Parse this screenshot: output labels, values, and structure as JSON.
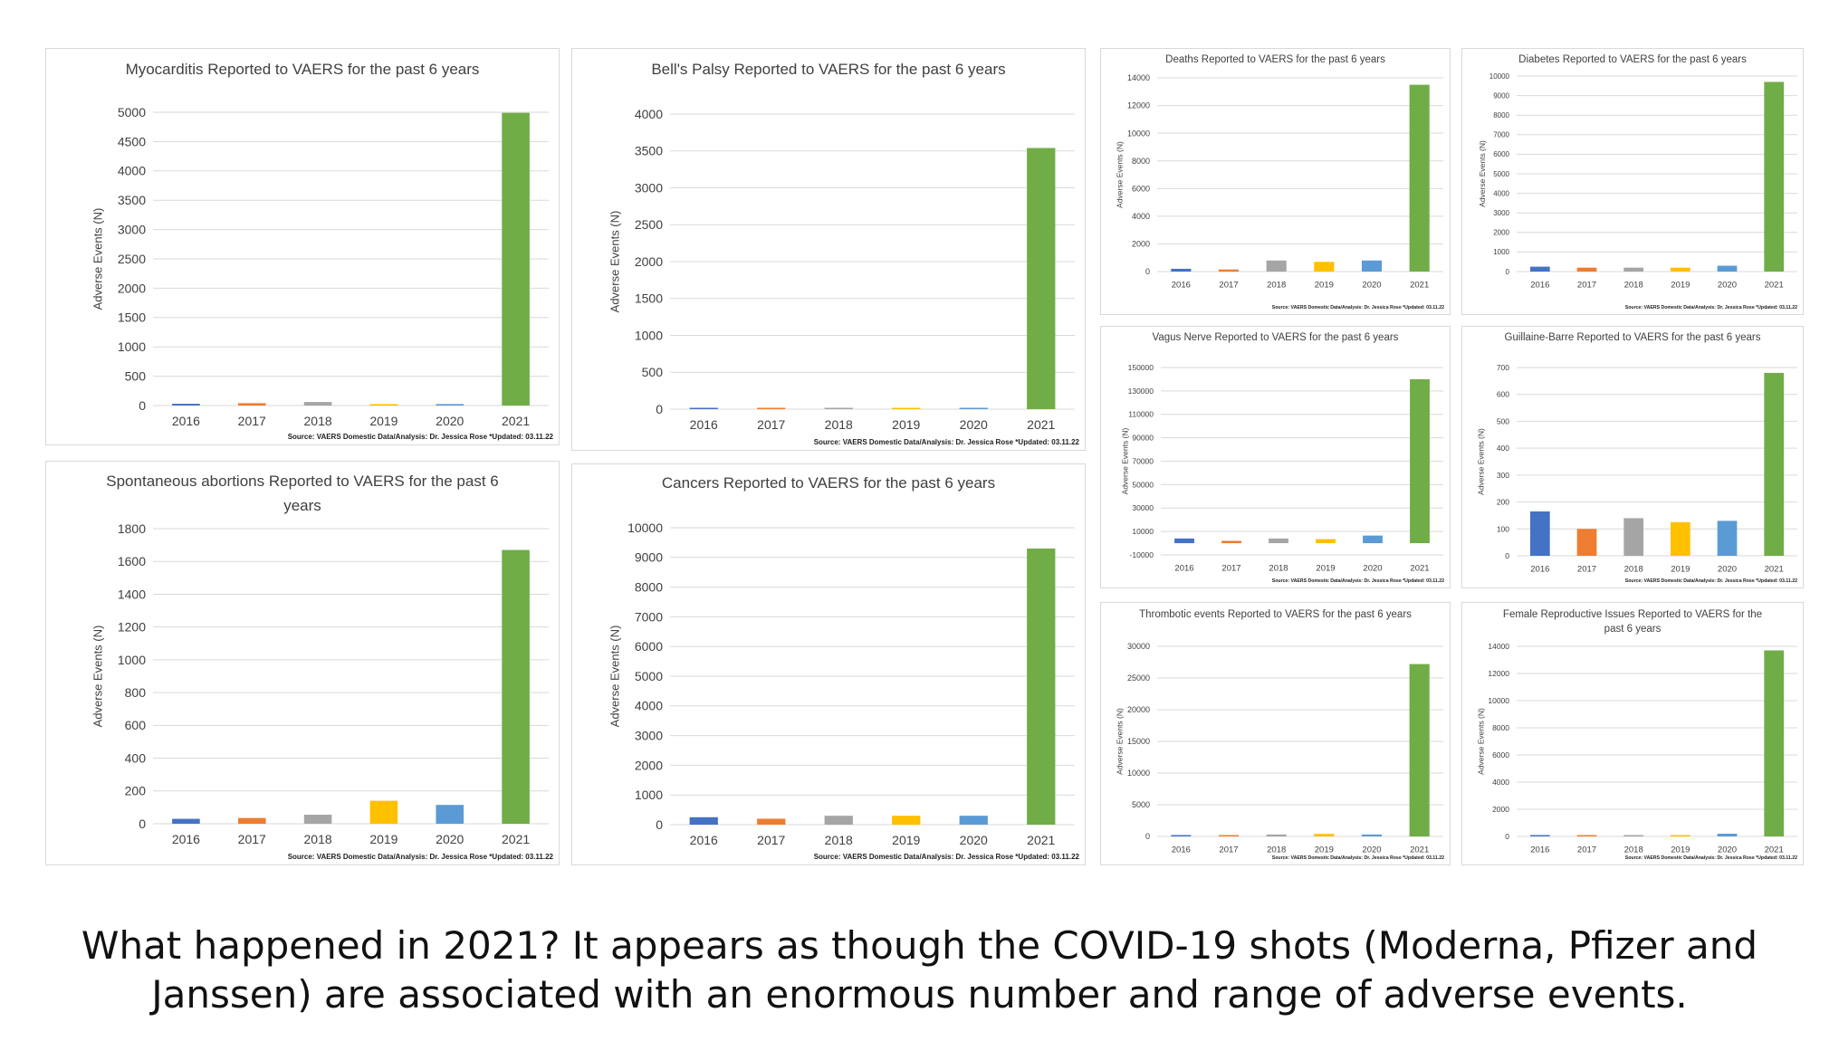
{
  "charts": [
    {
      "id": "c1",
      "title": "Myocarditis Reported to VAERS for the past 6 years",
      "ylabel": "Adverse Events (N)",
      "source": "Source: VAERS Domestic Data/Analysis: Dr. Jessica Rose *Updated: 03.11.22"
    },
    {
      "id": "c2",
      "title": "Bell's Palsy Reported to VAERS for the past 6 years",
      "ylabel": "Adverse Events (N)",
      "source": "Source: VAERS Domestic Data/Analysis: Dr. Jessica Rose *Updated: 03.11.22"
    },
    {
      "id": "c3",
      "title": "Deaths Reported to VAERS for the past 6 years",
      "ylabel": "Adverse Events (N)",
      "source": "Source: VAERS Domestic Data/Analysis: Dr. Jessica Rose *Updated: 03.11.22"
    },
    {
      "id": "c4",
      "title": "Diabetes Reported to VAERS for the past 6 years",
      "ylabel": "Adverse Events (N)",
      "source": "Source: VAERS Domestic Data/Analysis: Dr. Jessica Rose *Updated: 03.11.22"
    },
    {
      "id": "c5",
      "title": "Vagus Nerve Reported to VAERS for the past 6 years",
      "ylabel": "Adverse Events (N)",
      "source": "Source: VAERS Domestic Data/Analysis: Dr. Jessica Rose *Updated: 03.11.22"
    },
    {
      "id": "c6",
      "title": "Guillaine-Barre Reported to VAERS for the past 6 years",
      "ylabel": "Adverse Events (N)",
      "source": "Source: VAERS Domestic Data/Analysis: Dr. Jessica Rose *Updated: 03.11.22"
    },
    {
      "id": "c7",
      "title": "Spontaneous abortions Reported to VAERS for the past 6 years",
      "ylabel": "Adverse Events (N)",
      "source": "Source: VAERS Domestic Data/Analysis: Dr. Jessica Rose *Updated: 03.11.22"
    },
    {
      "id": "c8",
      "title": "Cancers Reported to VAERS for the past 6 years",
      "ylabel": "Adverse Events (N)",
      "source": "Source: VAERS Domestic Data/Analysis: Dr. Jessica Rose *Updated: 03.11.22"
    },
    {
      "id": "c9",
      "title": "Thrombotic events Reported to VAERS for the past 6 years",
      "ylabel": "Adverse Events (N)",
      "source": "Source: VAERS Domestic Data/Analysis: Dr. Jessica Rose *Updated: 03.11.22"
    },
    {
      "id": "c10",
      "title": "Female Reproductive Issues Reported to VAERS for the past 6 years",
      "ylabel": "Adverse Events (N)",
      "source": "Source: VAERS Domestic Data/Analysis: Dr. Jessica Rose *Updated: 03.11.22"
    }
  ],
  "chart_data": [
    {
      "id": "c1",
      "type": "bar",
      "title": "Myocarditis Reported to VAERS for the past 6 years",
      "xlabel": "",
      "ylabel": "Adverse Events (N)",
      "categories": [
        "2016",
        "2017",
        "2018",
        "2019",
        "2020",
        "2021"
      ],
      "values": [
        30,
        40,
        60,
        25,
        25,
        4990
      ],
      "ylim": [
        0,
        5000
      ],
      "ystep": 500,
      "grid": true
    },
    {
      "id": "c2",
      "type": "bar",
      "title": "Bell's Palsy Reported to VAERS for the past 6 years",
      "xlabel": "",
      "ylabel": "Adverse Events (N)",
      "categories": [
        "2016",
        "2017",
        "2018",
        "2019",
        "2020",
        "2021"
      ],
      "values": [
        5,
        5,
        5,
        5,
        10,
        3540
      ],
      "ylim": [
        0,
        4000
      ],
      "ystep": 500,
      "grid": true
    },
    {
      "id": "c3",
      "type": "bar",
      "title": "Deaths Reported to VAERS for the past 6 years",
      "xlabel": "",
      "ylabel": "Adverse Events (N)",
      "categories": [
        "2016",
        "2017",
        "2018",
        "2019",
        "2020",
        "2021"
      ],
      "values": [
        200,
        150,
        800,
        700,
        800,
        13500
      ],
      "ylim": [
        0,
        14000
      ],
      "ystep": 2000,
      "grid": true
    },
    {
      "id": "c4",
      "type": "bar",
      "title": "Diabetes Reported to VAERS for the past 6 years",
      "xlabel": "",
      "ylabel": "Adverse Events (N)",
      "categories": [
        "2016",
        "2017",
        "2018",
        "2019",
        "2020",
        "2021"
      ],
      "values": [
        250,
        200,
        200,
        200,
        300,
        9700
      ],
      "ylim": [
        0,
        10000
      ],
      "ystep": 1000,
      "grid": true
    },
    {
      "id": "c5",
      "type": "bar",
      "title": "Vagus Nerve Reported to VAERS for the past 6 years",
      "xlabel": "",
      "ylabel": "Adverse Events (N)",
      "categories": [
        "2016",
        "2017",
        "2018",
        "2019",
        "2020",
        "2021"
      ],
      "values": [
        4000,
        2000,
        4000,
        3500,
        6500,
        140000
      ],
      "ylim": [
        -10000,
        150000
      ],
      "yticks": [
        -10000,
        10000,
        30000,
        50000,
        70000,
        90000,
        110000,
        130000,
        150000
      ],
      "grid": true
    },
    {
      "id": "c6",
      "type": "bar",
      "title": "Guillaine-Barre Reported to VAERS for the past 6 years",
      "xlabel": "",
      "ylabel": "Adverse Events (N)",
      "categories": [
        "2016",
        "2017",
        "2018",
        "2019",
        "2020",
        "2021"
      ],
      "values": [
        165,
        100,
        140,
        125,
        130,
        680
      ],
      "ylim": [
        0,
        700
      ],
      "ystep": 100,
      "grid": true
    },
    {
      "id": "c7",
      "type": "bar",
      "title": "Spontaneous abortions Reported to VAERS for the past 6 years",
      "xlabel": "",
      "ylabel": "Adverse Events (N)",
      "categories": [
        "2016",
        "2017",
        "2018",
        "2019",
        "2020",
        "2021"
      ],
      "values": [
        30,
        35,
        55,
        140,
        115,
        1670
      ],
      "ylim": [
        0,
        1800
      ],
      "ystep": 200,
      "grid": true
    },
    {
      "id": "c8",
      "type": "bar",
      "title": "Cancers Reported to VAERS for the past 6 years",
      "xlabel": "",
      "ylabel": "Adverse Events (N)",
      "categories": [
        "2016",
        "2017",
        "2018",
        "2019",
        "2020",
        "2021"
      ],
      "values": [
        250,
        200,
        300,
        300,
        300,
        9300
      ],
      "ylim": [
        0,
        10000
      ],
      "ystep": 1000,
      "grid": true
    },
    {
      "id": "c9",
      "type": "bar",
      "title": "Thrombotic events Reported to VAERS for the past 6 years",
      "xlabel": "",
      "ylabel": "Adverse Events (N)",
      "categories": [
        "2016",
        "2017",
        "2018",
        "2019",
        "2020",
        "2021"
      ],
      "values": [
        200,
        200,
        300,
        400,
        300,
        27200
      ],
      "ylim": [
        0,
        30000
      ],
      "ystep": 5000,
      "grid": true
    },
    {
      "id": "c10",
      "type": "bar",
      "title": "Female Reproductive Issues Reported to VAERS for the past 6 years",
      "xlabel": "",
      "ylabel": "Adverse Events (N)",
      "categories": [
        "2016",
        "2017",
        "2018",
        "2019",
        "2020",
        "2021"
      ],
      "values": [
        100,
        100,
        50,
        100,
        200,
        13700
      ],
      "ylim": [
        0,
        14000
      ],
      "ystep": 2000,
      "grid": true
    }
  ],
  "colors": [
    "#4472c4",
    "#ed7d31",
    "#a5a5a5",
    "#ffc000",
    "#5b9bd5",
    "#70ad47"
  ],
  "caption": "What happened in 2021? It appears as though the COVID-19 shots (Moderna, Pfizer and Janssen) are associated with an enormous number and range of adverse events."
}
